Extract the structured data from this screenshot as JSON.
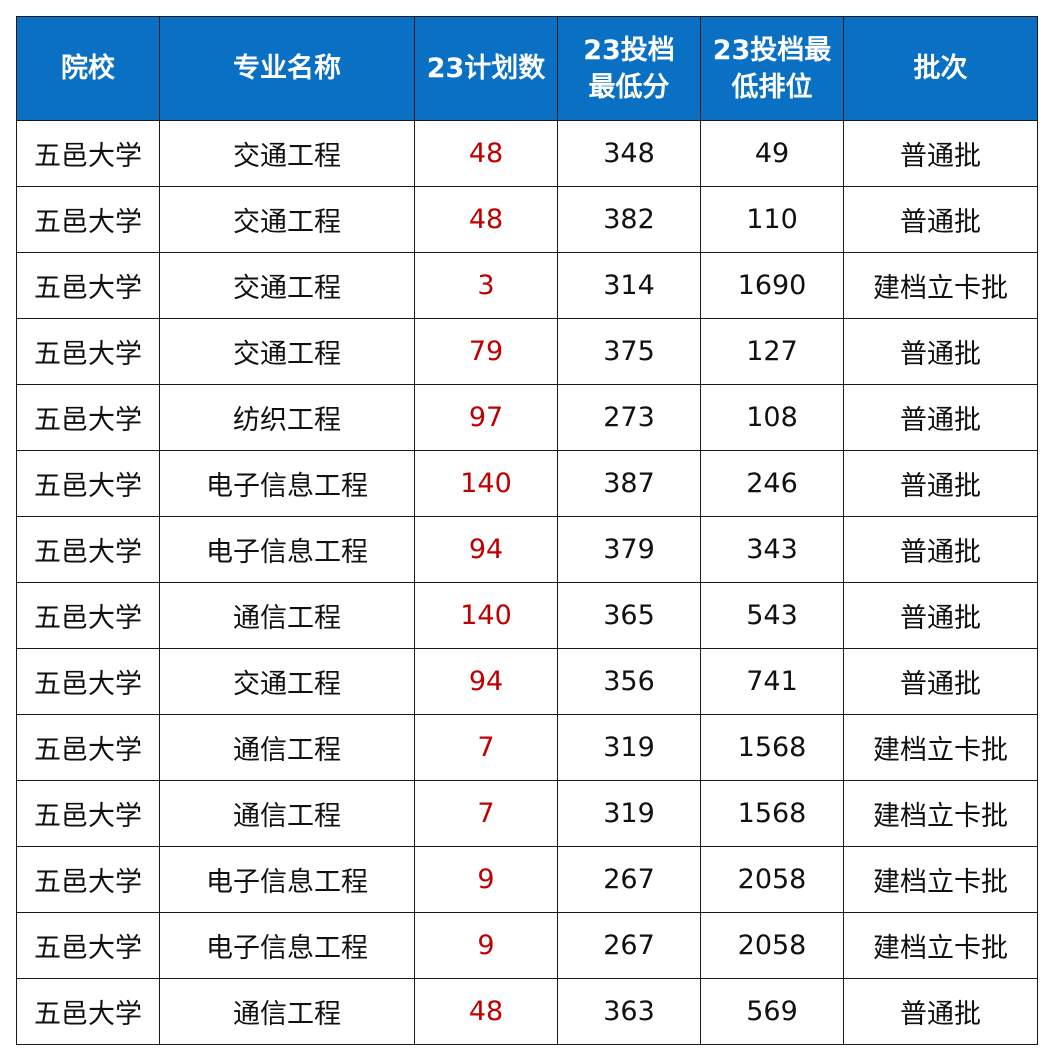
{
  "colors": {
    "header_bg": "#0a70c4",
    "header_text": "#ffffff",
    "plan_number": "#c00000",
    "cell_text": "#111111",
    "border": "#1a1a1a"
  },
  "table": {
    "headers": [
      "院校",
      "专业名称",
      "23计划数",
      "23投档\n最低分",
      "23投档最\n低排位",
      "批次"
    ],
    "rows": [
      [
        "五邑大学",
        "交通工程",
        "48",
        "348",
        "49",
        "普通批"
      ],
      [
        "五邑大学",
        "交通工程",
        "48",
        "382",
        "110",
        "普通批"
      ],
      [
        "五邑大学",
        "交通工程",
        "3",
        "314",
        "1690",
        "建档立卡批"
      ],
      [
        "五邑大学",
        "交通工程",
        "79",
        "375",
        "127",
        "普通批"
      ],
      [
        "五邑大学",
        "纺织工程",
        "97",
        "273",
        "108",
        "普通批"
      ],
      [
        "五邑大学",
        "电子信息工程",
        "140",
        "387",
        "246",
        "普通批"
      ],
      [
        "五邑大学",
        "电子信息工程",
        "94",
        "379",
        "343",
        "普通批"
      ],
      [
        "五邑大学",
        "通信工程",
        "140",
        "365",
        "543",
        "普通批"
      ],
      [
        "五邑大学",
        "交通工程",
        "94",
        "356",
        "741",
        "普通批"
      ],
      [
        "五邑大学",
        "通信工程",
        "7",
        "319",
        "1568",
        "建档立卡批"
      ],
      [
        "五邑大学",
        "通信工程",
        "7",
        "319",
        "1568",
        "建档立卡批"
      ],
      [
        "五邑大学",
        "电子信息工程",
        "9",
        "267",
        "2058",
        "建档立卡批"
      ],
      [
        "五邑大学",
        "电子信息工程",
        "9",
        "267",
        "2058",
        "建档立卡批"
      ],
      [
        "五邑大学",
        "通信工程",
        "48",
        "363",
        "569",
        "普通批"
      ]
    ]
  }
}
